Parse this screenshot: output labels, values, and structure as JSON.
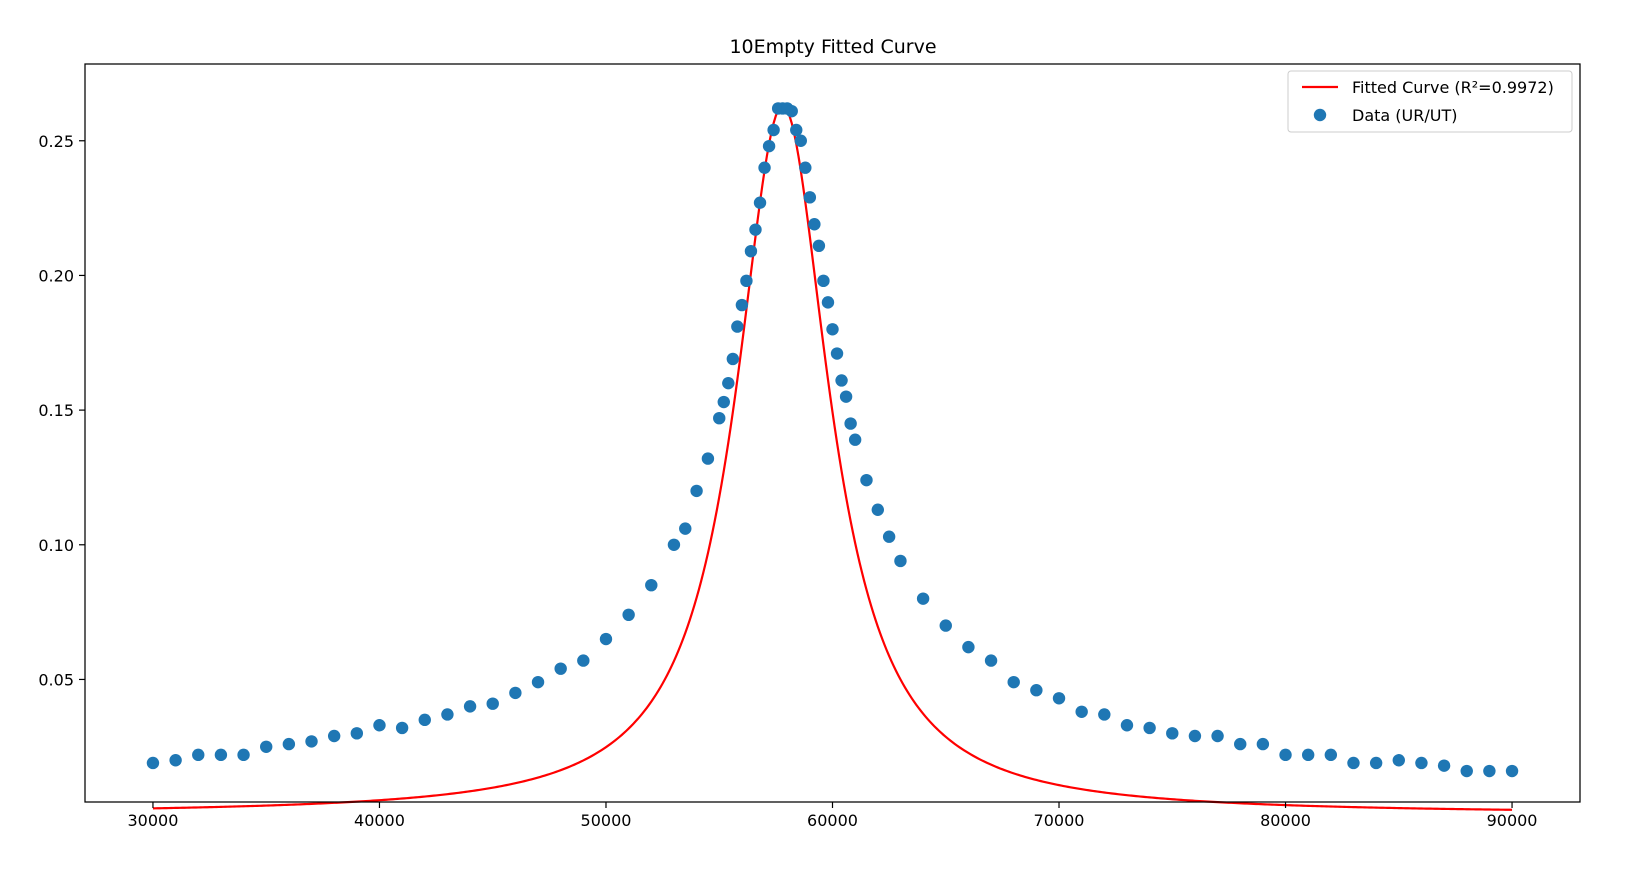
{
  "chart_data": {
    "type": "scatter",
    "title": "10Empty Fitted Curve",
    "xlabel": "",
    "ylabel": "",
    "xlim": [
      27000,
      93000
    ],
    "ylim": [
      0.0045,
      0.2785
    ],
    "x_ticks": [
      30000,
      40000,
      50000,
      60000,
      70000,
      80000,
      90000
    ],
    "y_ticks": [
      0.05,
      0.1,
      0.15,
      0.2,
      0.25
    ],
    "grid": false,
    "legend_position": "top-right",
    "legend": [
      "Fitted Curve (R²=0.9972)",
      "Data (UR/UT)"
    ],
    "colors": {
      "fit": "#ff0000",
      "data": "#1f77b4",
      "frame": "#000000"
    },
    "series": [
      {
        "name": "Fitted Curve (R²=0.9972)",
        "kind": "line",
        "curve": {
          "model": "lorentzian",
          "center": 57800,
          "peak": 0.263,
          "gamma": 2520
        },
        "x_range": [
          30000,
          90000
        ]
      },
      {
        "name": "Data (UR/UT)",
        "kind": "scatter",
        "x": [
          30000,
          31000,
          32000,
          33000,
          34000,
          35000,
          36000,
          37000,
          38000,
          39000,
          40000,
          41000,
          42000,
          43000,
          44000,
          45000,
          46000,
          47000,
          48000,
          49000,
          50000,
          51000,
          52000,
          53000,
          53500,
          54000,
          54500,
          55000,
          55200,
          55400,
          55600,
          55800,
          56000,
          56200,
          56400,
          56600,
          56800,
          57000,
          57200,
          57400,
          57600,
          57800,
          58000,
          58200,
          58400,
          58600,
          58800,
          59000,
          59200,
          59400,
          59600,
          59800,
          60000,
          60200,
          60400,
          60600,
          60800,
          61000,
          61500,
          62000,
          62500,
          63000,
          64000,
          65000,
          66000,
          67000,
          68000,
          69000,
          70000,
          71000,
          72000,
          73000,
          74000,
          75000,
          76000,
          77000,
          78000,
          79000,
          80000,
          81000,
          82000,
          83000,
          84000,
          85000,
          86000,
          87000,
          88000,
          89000,
          90000
        ],
        "y": [
          0.019,
          0.02,
          0.022,
          0.022,
          0.022,
          0.025,
          0.026,
          0.027,
          0.029,
          0.03,
          0.033,
          0.032,
          0.035,
          0.037,
          0.04,
          0.041,
          0.045,
          0.049,
          0.054,
          0.057,
          0.065,
          0.074,
          0.085,
          0.1,
          0.106,
          0.12,
          0.132,
          0.147,
          0.153,
          0.16,
          0.169,
          0.181,
          0.189,
          0.198,
          0.209,
          0.217,
          0.227,
          0.24,
          0.248,
          0.254,
          0.262,
          0.262,
          0.262,
          0.261,
          0.254,
          0.25,
          0.24,
          0.229,
          0.219,
          0.211,
          0.198,
          0.19,
          0.18,
          0.171,
          0.161,
          0.155,
          0.145,
          0.139,
          0.124,
          0.113,
          0.103,
          0.094,
          0.08,
          0.07,
          0.062,
          0.057,
          0.049,
          0.046,
          0.043,
          0.038,
          0.037,
          0.033,
          0.032,
          0.03,
          0.029,
          0.029,
          0.026,
          0.026,
          0.022,
          0.022,
          0.022,
          0.019,
          0.019,
          0.02,
          0.019,
          0.018,
          0.016,
          0.016,
          0.016
        ]
      }
    ]
  }
}
